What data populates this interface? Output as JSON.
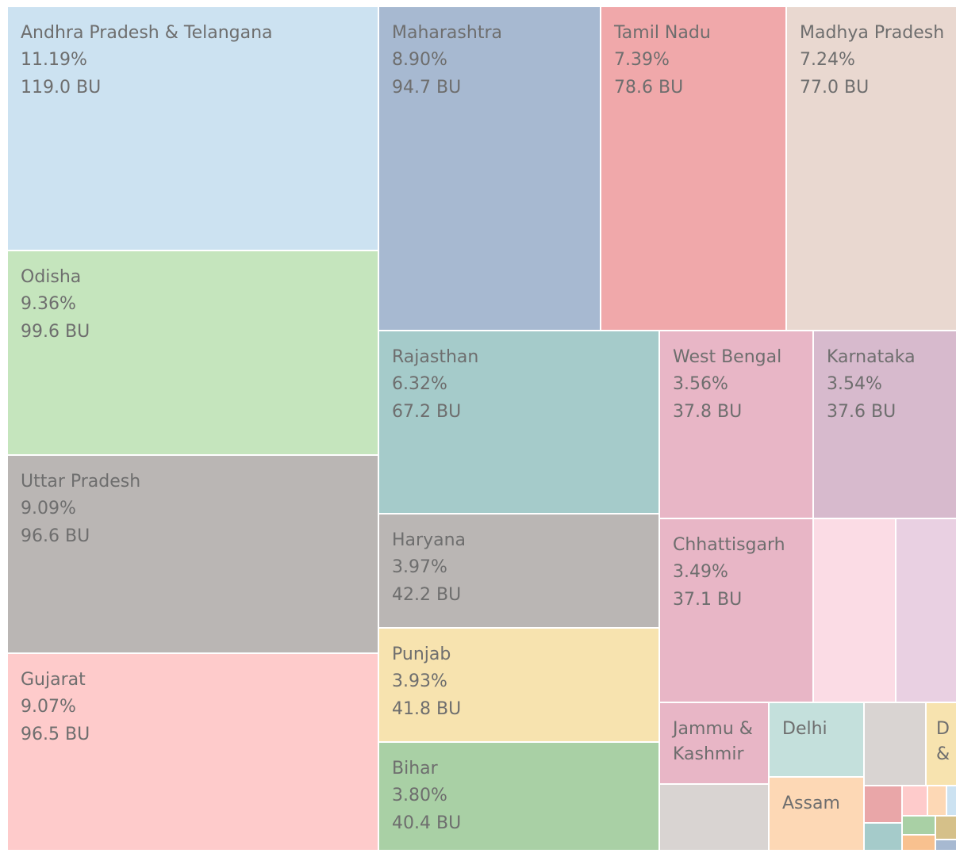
{
  "chart_data": {
    "type": "treemap",
    "categories": [
      "Andhra Pradesh & Telangana",
      "Odisha",
      "Uttar Pradesh",
      "Gujarat",
      "Maharashtra",
      "Tamil Nadu",
      "Madhya Pradesh",
      "Rajasthan",
      "Haryana",
      "Punjab",
      "Bihar",
      "West Bengal",
      "Karnataka",
      "Chhattisgarh",
      "Jammu & Kashmir",
      "Delhi",
      "Assam",
      "D &"
    ],
    "percents": [
      11.19,
      9.36,
      9.09,
      9.07,
      8.9,
      7.39,
      7.24,
      6.32,
      3.97,
      3.93,
      3.8,
      3.56,
      3.54,
      3.49,
      null,
      null,
      null,
      null
    ],
    "percent_labels": [
      "11.19%",
      "9.36%",
      "9.09%",
      "9.07%",
      "8.90%",
      "7.39%",
      "7.24%",
      "6.32%",
      "3.97%",
      "3.93%",
      "3.80%",
      "3.56%",
      "3.54%",
      "3.49%",
      null,
      null,
      null,
      null
    ],
    "values": [
      119.0,
      99.6,
      96.6,
      96.5,
      94.7,
      78.6,
      77.0,
      67.2,
      42.2,
      41.8,
      40.4,
      37.8,
      37.6,
      37.1,
      null,
      null,
      null,
      null
    ],
    "value_labels": [
      "119.0 BU",
      "99.6 BU",
      "96.6 BU",
      "96.5 BU",
      "94.7 BU",
      "78.6 BU",
      "77.0 BU",
      "67.2 BU",
      "42.2 BU",
      "41.8 BU",
      "40.4 BU",
      "37.8 BU",
      "37.6 BU",
      "37.1 BU",
      null,
      null,
      null,
      null
    ],
    "colors": [
      "#cce2f1",
      "#c5e5bd",
      "#bab6b4",
      "#fecbcb",
      "#a7b9d1",
      "#f0a8aa",
      "#e9d8d0",
      "#a5cbca",
      "#bab6b4",
      "#f7e3af",
      "#a9d0a5",
      "#e8b6c6",
      "#d7bacd",
      "#e8b6c6",
      "#e8b6c6",
      "#c4e0dc",
      "#fdd8b5",
      "#f7e3af"
    ]
  }
}
